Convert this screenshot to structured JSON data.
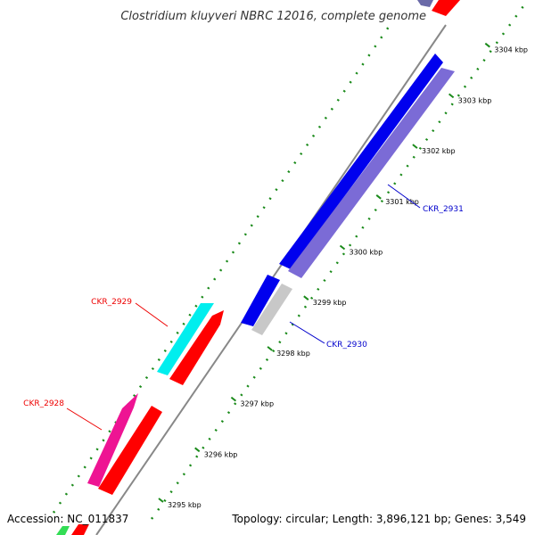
{
  "title": "Clostridium kluyveri NBRC 12016, complete genome",
  "accession": "Accession: NC_011837",
  "summary": "Topology: circular; Length: 3,896,121 bp; Genes: 3,549",
  "colors": {
    "backbone": "#888888",
    "tick": "#1a8a1a",
    "cds_red": "#ff0000",
    "cds_blue": "#0000ee",
    "cds_lavender": "#7b6bd6",
    "cds_grey": "#c8c8c8",
    "cds_cyan": "#00eeee",
    "cds_magenta": "#ee1493",
    "cds_green": "#33dd55",
    "label_red": "#ee0000",
    "label_blue": "#0000cc"
  },
  "ticks": [
    {
      "label": "3295 kbp"
    },
    {
      "label": "3296 kbp"
    },
    {
      "label": "3297 kbp"
    },
    {
      "label": "3298 kbp"
    },
    {
      "label": "3299 kbp"
    },
    {
      "label": "3300 kbp"
    },
    {
      "label": "3301 kbp"
    },
    {
      "label": "3302 kbp"
    },
    {
      "label": "3303 kbp"
    },
    {
      "label": "3304 kbp"
    }
  ],
  "gene_labels": [
    {
      "name": "CKR_2929"
    },
    {
      "name": "CKR_2928"
    },
    {
      "name": "CKR_2931"
    },
    {
      "name": "CKR_2930"
    }
  ]
}
